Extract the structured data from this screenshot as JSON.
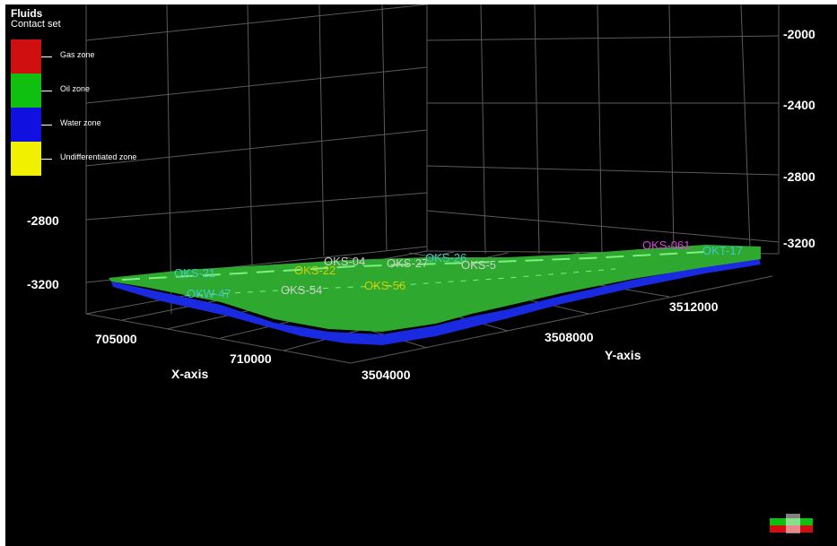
{
  "legend": {
    "title": "Fluids",
    "subtitle": "Contact set",
    "zones": [
      {
        "label": "Gas zone",
        "color": "#d01010"
      },
      {
        "label": "Oil zone",
        "color": "#10c010"
      },
      {
        "label": "Water zone",
        "color": "#1010e0"
      },
      {
        "label": "Undifferentiated zone",
        "color": "#f0f000"
      }
    ]
  },
  "axes": {
    "x_label": "X-axis",
    "y_label": "Y-axis",
    "x_ticks": [
      "705000",
      "710000"
    ],
    "y_ticks": [
      "3504000",
      "3508000",
      "3512000"
    ],
    "z_ticks_left": [
      "-2800",
      "-3200"
    ],
    "z_ticks_right": [
      "-2000",
      "-2400",
      "-2800",
      "-3200"
    ]
  },
  "wells": [
    {
      "name": "OKS-21",
      "color": "#40c8c8"
    },
    {
      "name": "OKW-47",
      "color": "#40c8c8"
    },
    {
      "name": "OKS-54",
      "color": "#d0d0d0"
    },
    {
      "name": "OKS-22",
      "color": "#d0d000"
    },
    {
      "name": "OKS-04",
      "color": "#d0d0d0"
    },
    {
      "name": "OKS-27",
      "color": "#d0d0d0"
    },
    {
      "name": "OKS-26",
      "color": "#40c8c8"
    },
    {
      "name": "OKS-5",
      "color": "#d0d0d0"
    },
    {
      "name": "OKS-56",
      "color": "#d0d000"
    },
    {
      "name": "OKS-061",
      "color": "#e040e0"
    },
    {
      "name": "OKT-17",
      "color": "#40c8c8"
    }
  ],
  "colors": {
    "viewport_bg": "#000000",
    "grid": "#5a5a5a",
    "oil": "#2fa82f",
    "water": "#1a2ae0"
  }
}
